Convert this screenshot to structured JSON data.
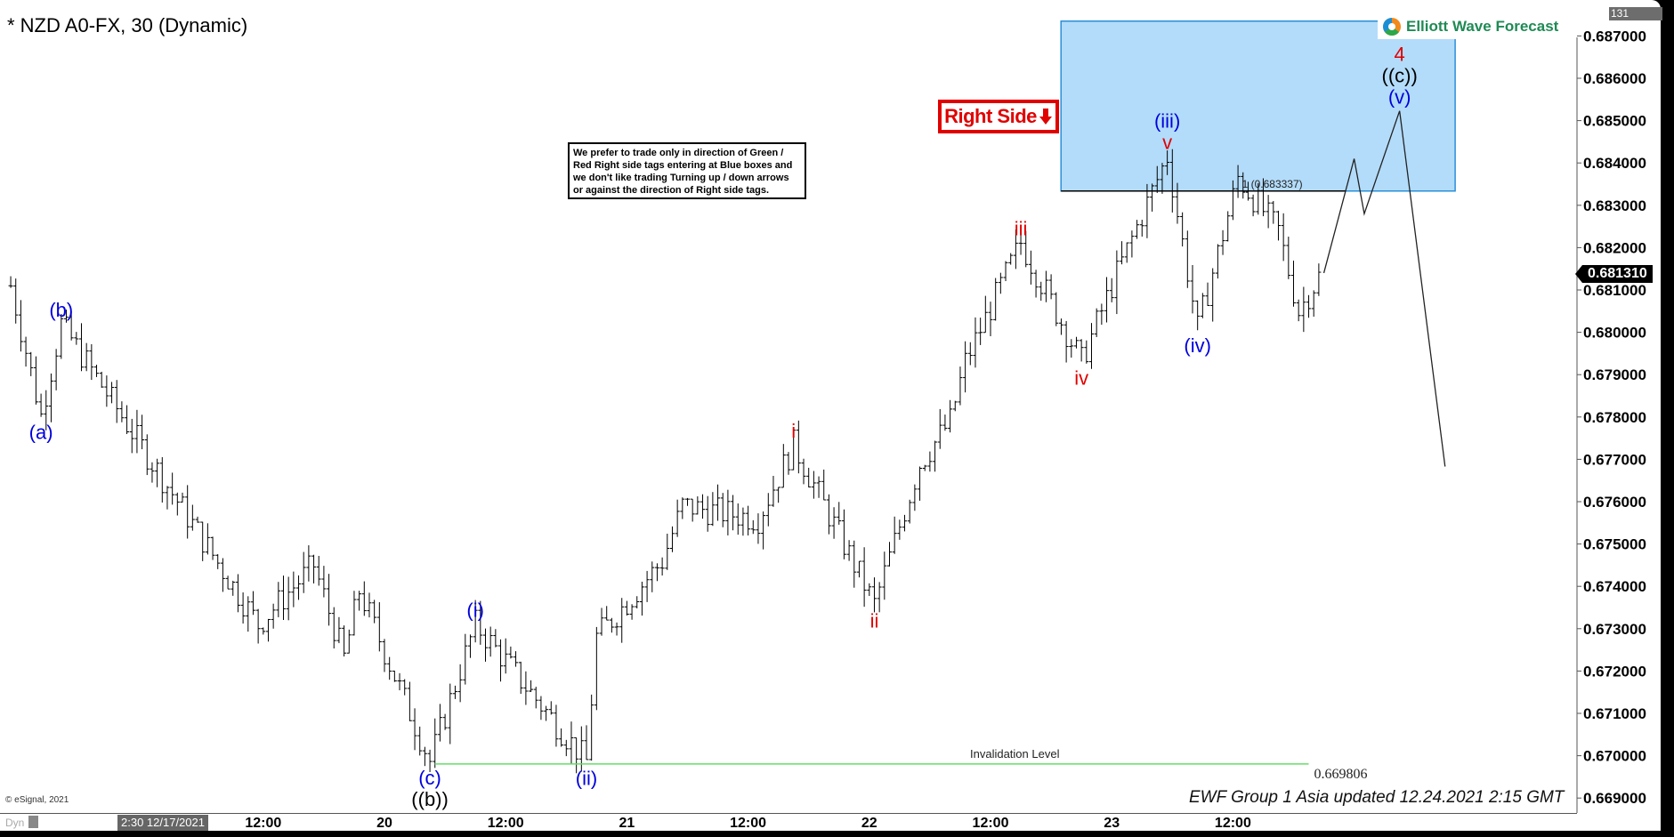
{
  "header": {
    "title": "* NZD A0-FX, 30 (Dynamic)",
    "logo_text": "Elliott Wave Forecast",
    "tick_tag": "131"
  },
  "note": "We prefer to trade only in direction of Green / Red Right side tags entering at Blue boxes and we don't like trading Turning up / down arrows or against the direction of Right side tags.",
  "right_side_tag": {
    "label": "Right Side",
    "arrow": "arrow-down-icon",
    "color": "#e00000"
  },
  "footer": "EWF Group 1 Asia updated 12.24.2021 2:15 GMT",
  "copyright": "© eSignal, 2021",
  "toolbar": {
    "dyn": "Dyn"
  },
  "chart_data": {
    "type": "ohlc",
    "symbol": "NZD A0-FX",
    "interval": "30",
    "ylim": [
      0.6688,
      0.6874
    ],
    "y_ticks": [
      "0.687000",
      "0.686000",
      "0.685000",
      "0.684000",
      "0.683000",
      "0.682000",
      "0.681000",
      "0.680000",
      "0.679000",
      "0.678000",
      "0.677000",
      "0.676000",
      "0.675000",
      "0.674000",
      "0.673000",
      "0.672000",
      "0.671000",
      "0.670000",
      "0.669000"
    ],
    "x_ticks": [
      {
        "t": "12/17 02:30",
        "label": "2:30 12/17/2021"
      },
      {
        "t": "12/19 12:00",
        "label": "12:00"
      },
      {
        "t": "12/20 00:00",
        "label": "20"
      },
      {
        "t": "12/20 12:00",
        "label": "12:00"
      },
      {
        "t": "12/21 00:00",
        "label": "21"
      },
      {
        "t": "12/21 12:00",
        "label": "12:00"
      },
      {
        "t": "12/22 00:00",
        "label": "22"
      },
      {
        "t": "12/22 12:00",
        "label": "12:00"
      },
      {
        "t": "12/23 00:00",
        "label": "23"
      },
      {
        "t": "12/23 12:00",
        "label": "12:00"
      }
    ],
    "last_price": "0.681310",
    "price_path": [
      [
        "12/18 11:00",
        0.6811
      ],
      [
        "12/18 14:00",
        0.67803
      ],
      [
        "12/18 16:00",
        0.6802
      ],
      [
        "12/19 11:30",
        0.6731
      ],
      [
        "12/19 17:00",
        0.6745
      ],
      [
        "12/19 20:00",
        0.6723
      ],
      [
        "12/19 21:30",
        0.6739
      ],
      [
        "12/20 04:30",
        0.66987
      ],
      [
        "12/20 09:00",
        0.67311
      ],
      [
        "12/20 20:00",
        0.66986
      ],
      [
        "12/20 21:00",
        0.6728
      ],
      [
        "12/21 03:30",
        0.6746
      ],
      [
        "12/21 05:30",
        0.6759
      ],
      [
        "12/21 13:00",
        0.6756
      ],
      [
        "12/21 16:30",
        0.67734
      ],
      [
        "12/22 00:30",
        0.67357
      ],
      [
        "12/22 05:00",
        0.6769
      ],
      [
        "12/22 08:00",
        0.6779
      ],
      [
        "12/22 09:30",
        0.6793
      ],
      [
        "12/22 15:00",
        0.68212
      ],
      [
        "12/22 21:00",
        0.67931
      ],
      [
        "12/23 00:00",
        0.6811
      ],
      [
        "12/23 05:30",
        0.68416
      ],
      [
        "12/23 08:30",
        0.68008
      ],
      [
        "12/23 12:30",
        0.68365
      ],
      [
        "12/23 16:30",
        0.6824
      ],
      [
        "12/23 18:30",
        0.6805
      ],
      [
        "12/23 20:30",
        0.68131
      ]
    ],
    "projection": [
      [
        "12/23 21:00",
        0.6814
      ],
      [
        "12/24 00:00",
        0.6841
      ],
      [
        "12/24 01:00",
        0.6828
      ],
      [
        "12/24 04:30",
        0.68523
      ],
      [
        "12/24 09:00",
        0.67683
      ]
    ],
    "blue_box": {
      "from": "12/23 00:00",
      "to": "12/24 10:00",
      "top": 0.68735,
      "bottom": 0.683337,
      "color": "#b3dcfa"
    },
    "fib_level": {
      "label": "1 (0.683337)",
      "value": 0.683337,
      "to": "12/24 00:00"
    },
    "invalidation": {
      "label": "Invalidation Level",
      "value_label": "0.669806",
      "value": 0.669806,
      "from": "12/20 05:00",
      "to": "12/23 19:30",
      "color": "#66dd66"
    },
    "wave_labels": [
      {
        "text": "(a)",
        "t": "12/18 14:00",
        "p": 0.67803,
        "pos": "below",
        "level": 0,
        "color": "#0000dd"
      },
      {
        "text": "(b)",
        "t": "12/18 16:00",
        "p": 0.6802,
        "pos": "above",
        "level": 0,
        "color": "#0000dd"
      },
      {
        "text": "(c)",
        "t": "12/20 04:30",
        "p": 0.66987,
        "pos": "below",
        "level": 0,
        "color": "#0000dd"
      },
      {
        "text": "((b))",
        "t": "12/20 04:30",
        "p": 0.66987,
        "pos": "below",
        "level": 1,
        "color": "#000000"
      },
      {
        "text": "(i)",
        "t": "12/20 09:00",
        "p": 0.67311,
        "pos": "above",
        "level": 0,
        "color": "#0000dd"
      },
      {
        "text": "(ii)",
        "t": "12/20 20:00",
        "p": 0.66986,
        "pos": "below",
        "level": 0,
        "color": "#0000dd"
      },
      {
        "text": "i",
        "t": "12/21 16:30",
        "p": 0.67734,
        "pos": "above",
        "level": 0,
        "color": "#e00000"
      },
      {
        "text": "ii",
        "t": "12/22 00:30",
        "p": 0.67357,
        "pos": "below",
        "level": 0,
        "color": "#e00000"
      },
      {
        "text": "iii",
        "t": "12/22 15:00",
        "p": 0.68212,
        "pos": "above",
        "level": 0,
        "color": "#e00000"
      },
      {
        "text": "iv",
        "t": "12/22 21:00",
        "p": 0.67931,
        "pos": "below",
        "level": 0,
        "color": "#e00000"
      },
      {
        "text": "v",
        "t": "12/23 05:30",
        "p": 0.68416,
        "pos": "above",
        "level": 0,
        "color": "#e00000"
      },
      {
        "text": "(iii)",
        "t": "12/23 05:30",
        "p": 0.68416,
        "pos": "above",
        "level": 1,
        "color": "#0000dd"
      },
      {
        "text": "(iv)",
        "t": "12/23 08:30",
        "p": 0.68008,
        "pos": "below",
        "level": 0,
        "color": "#0000dd"
      },
      {
        "text": "(v)",
        "t": "12/24 04:30",
        "p": 0.68523,
        "pos": "above",
        "level": 0,
        "color": "#0000dd"
      },
      {
        "text": "((c))",
        "t": "12/24 04:30",
        "p": 0.68523,
        "pos": "above",
        "level": 1,
        "color": "#000000"
      },
      {
        "text": "4",
        "t": "12/24 04:30",
        "p": 0.68523,
        "pos": "above",
        "level": 2,
        "color": "#e00000"
      }
    ]
  }
}
